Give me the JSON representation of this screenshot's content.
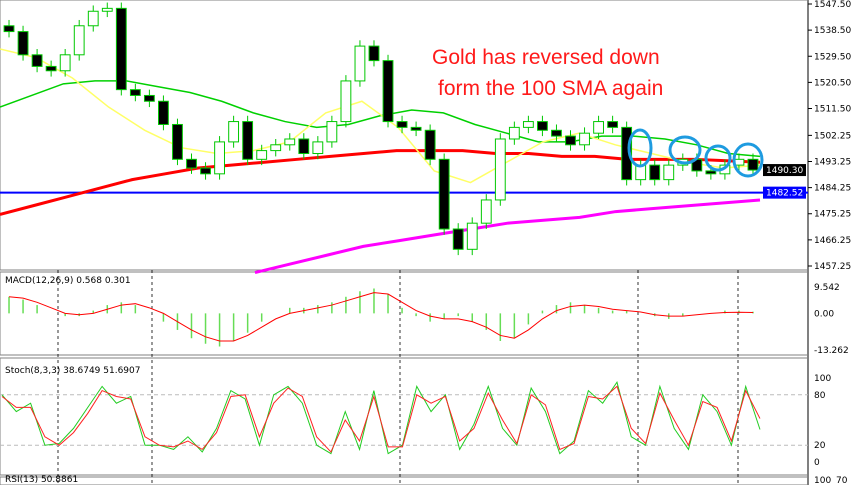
{
  "chart_data": {
    "type": "candlestick",
    "annotation": [
      "Gold has reversed down",
      "form the 100 SMA again"
    ],
    "price_axis": {
      "ticks": [
        1547.5,
        1538.5,
        1529.5,
        1520.5,
        1511.5,
        1502.25,
        1493.25,
        1484.25,
        1475.25,
        1466.25,
        1457.25
      ],
      "ylim": [
        1457.25,
        1547.5
      ],
      "current_price": "1490.30",
      "support_level": "1482.52"
    },
    "closes": [
      1538,
      1530,
      1526,
      1524.5,
      1530,
      1540,
      1545,
      1546,
      1518,
      1516,
      1514,
      1506,
      1494,
      1491,
      1489,
      1500,
      1507,
      1494,
      1497,
      1499,
      1501,
      1496,
      1500,
      1507,
      1521,
      1533,
      1528,
      1507,
      1505,
      1504,
      1494,
      1470,
      1463,
      1472,
      1480,
      1501,
      1505,
      1507,
      1504,
      1502,
      1499,
      1503,
      1507,
      1505,
      1487,
      1492,
      1487,
      1492,
      1494,
      1490,
      1489,
      1492,
      1494,
      1490.3
    ],
    "overlays": [
      {
        "label": "100 SMA",
        "color": "#ff0000",
        "values": [
          1475,
          1478,
          1481,
          1484,
          1487,
          1489,
          1491,
          1492,
          1493,
          1494,
          1495,
          1496,
          1497,
          1497,
          1497,
          1496,
          1496,
          1495,
          1495,
          1494,
          1494,
          1494,
          1493.5,
          1493
        ]
      },
      {
        "label": "",
        "color": "#00d000",
        "values": [
          1512,
          1516,
          1520,
          1521,
          1521,
          1519,
          1517,
          1514,
          1510,
          1507,
          1505,
          1506,
          1509,
          1511,
          1510,
          1506,
          1503,
          1500,
          1500,
          1502,
          1502,
          1501,
          1499,
          1496,
          1495
        ]
      },
      {
        "label": "",
        "color": "#ff00ff",
        "values": [
          1455,
          1458,
          1461,
          1464,
          1466,
          1468,
          1470,
          1472,
          1473,
          1474,
          1476,
          1477,
          1478,
          1479,
          1480
        ]
      },
      {
        "label": "",
        "color": "#ffff66",
        "values": [
          1532,
          1529,
          1522,
          1512,
          1504,
          1498,
          1496,
          1497,
          1500,
          1510,
          1514,
          1505,
          1490,
          1486,
          1493,
          1500,
          1503,
          1499,
          1496,
          1493,
          1491,
          1492
        ]
      }
    ],
    "circled_points": 4,
    "macd": {
      "label": "MACD(12,26,9) 0.568 0.301",
      "ticks": [
        "9.542",
        "0.00",
        "-13.262"
      ],
      "ylim": [
        -13.262,
        9.542
      ],
      "histogram": [
        6,
        5,
        3,
        0,
        -1,
        -1,
        1,
        3,
        4,
        3,
        0,
        -3,
        -6,
        -9,
        -11,
        -12,
        -10,
        -7,
        -3,
        0,
        2,
        2,
        3,
        4,
        6,
        8,
        9,
        7,
        2,
        -1,
        -3,
        -2,
        -1,
        -3,
        -6,
        -10,
        -9,
        -4,
        1,
        3,
        4,
        3,
        2,
        1,
        1,
        0,
        -1,
        -2,
        -1,
        0,
        0,
        1,
        1,
        0.6
      ],
      "signal": [
        6,
        5.5,
        4,
        2,
        0,
        -0.5,
        0,
        1.5,
        3,
        3.5,
        2,
        0,
        -3,
        -6,
        -8.5,
        -10,
        -10,
        -8,
        -5,
        -2,
        0,
        1,
        2,
        3,
        4.5,
        6,
        7.5,
        7,
        4,
        1,
        -1,
        -2,
        -2,
        -3,
        -5,
        -8,
        -9,
        -6,
        -2,
        1,
        2.5,
        3,
        2.5,
        1.5,
        1,
        0.5,
        -0.5,
        -1,
        -1,
        -0.5,
        0,
        0.3,
        0.4,
        0.3
      ]
    },
    "stoch": {
      "label": "Stoch(8,3,3) 38.6749 51.6907",
      "ticks": [
        "100",
        "80",
        "20",
        "0"
      ],
      "ylim": [
        0,
        100
      ],
      "levels": [
        80,
        20
      ],
      "k": [
        80,
        60,
        70,
        20,
        22,
        40,
        65,
        90,
        70,
        78,
        20,
        20,
        15,
        30,
        12,
        40,
        85,
        75,
        20,
        80,
        90,
        70,
        20,
        10,
        60,
        15,
        85,
        10,
        20,
        90,
        60,
        80,
        15,
        45,
        90,
        40,
        20,
        88,
        60,
        10,
        25,
        85,
        70,
        95,
        30,
        20,
        90,
        40,
        15,
        80,
        60,
        20,
        90,
        38.7
      ],
      "d": [
        78,
        65,
        65,
        30,
        20,
        35,
        58,
        85,
        78,
        75,
        30,
        20,
        18,
        25,
        15,
        35,
        78,
        80,
        30,
        70,
        88,
        78,
        30,
        12,
        50,
        25,
        78,
        18,
        18,
        80,
        70,
        78,
        25,
        40,
        82,
        50,
        22,
        80,
        68,
        15,
        22,
        78,
        75,
        90,
        40,
        22,
        82,
        50,
        20,
        72,
        65,
        25,
        85,
        51.7
      ]
    },
    "rsi": {
      "label": "RSI(13) 50.8861",
      "ticks": [
        "100",
        "70"
      ]
    },
    "colors": {
      "bull_candle": "#00c800",
      "bear_candle": "#00c800",
      "sma100": "#ff0000",
      "support": "#0000ff",
      "circle": "#1e9be0",
      "macd_hist": "#66dd55",
      "stoch_k": "#22cc22",
      "stoch_d": "#ff2222",
      "price_badge": "#000000",
      "support_badge": "#0000ff"
    }
  }
}
